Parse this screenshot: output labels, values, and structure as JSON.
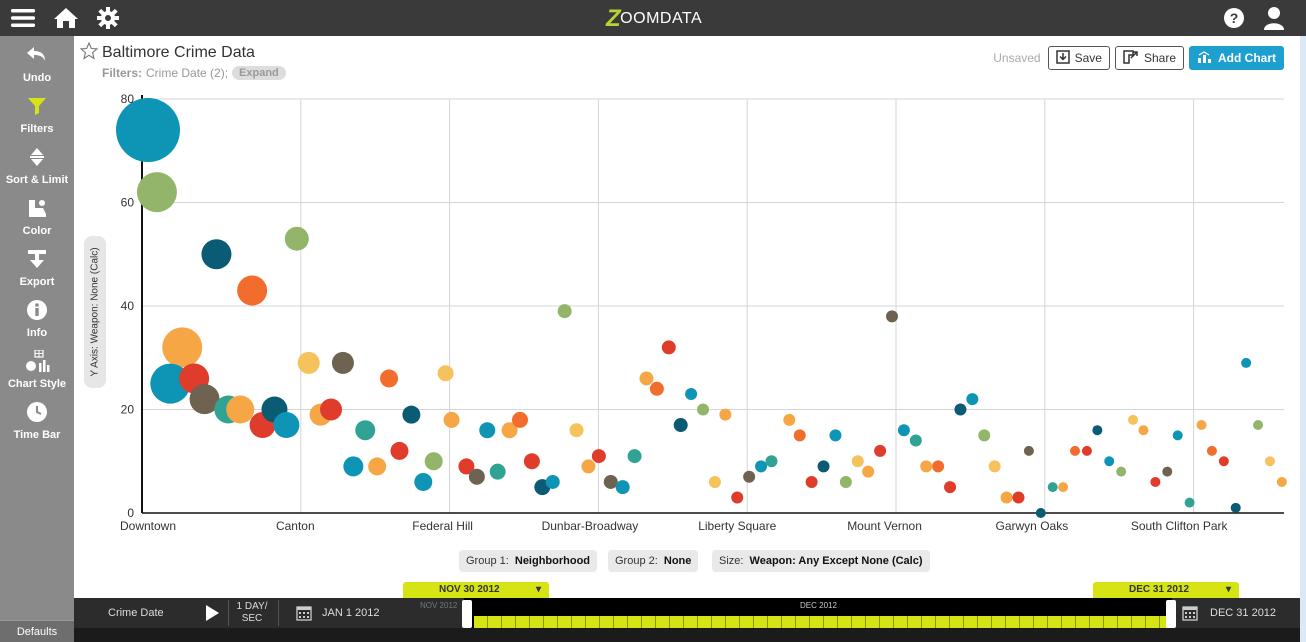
{
  "topbar": {
    "logo_text": "OOMDATA",
    "logo_mark": "Z"
  },
  "sidebar": {
    "items": [
      {
        "label": "Undo",
        "icon": "undo-icon"
      },
      {
        "label": "Filters",
        "icon": "filter-icon"
      },
      {
        "label": "Sort & Limit",
        "icon": "sort-icon"
      },
      {
        "label": "Color",
        "icon": "color-icon"
      },
      {
        "label": "Export",
        "icon": "export-icon"
      },
      {
        "label": "Info",
        "icon": "info-icon"
      },
      {
        "label": "Chart Style",
        "icon": "chart-style-icon"
      },
      {
        "label": "Time Bar",
        "icon": "clock-icon"
      }
    ],
    "defaults_label": "Defaults"
  },
  "header": {
    "title": "Baltimore Crime Data",
    "filters_label": "Filters:",
    "filters_value": "Crime Date (2);",
    "expand_label": "Expand",
    "unsaved_label": "Unsaved",
    "save_label": "Save",
    "share_label": "Share",
    "add_chart_label": "Add Chart"
  },
  "colors": {
    "accent": "#1d9fd0",
    "timebar": "#d6e315",
    "palette": [
      "#0e95b5",
      "#93b56a",
      "#0a5b73",
      "#f26d2d",
      "#f7a646",
      "#e03c2c",
      "#31a394",
      "#f5c25b",
      "#6e6250",
      "#c9d4e0"
    ]
  },
  "yaxis_pill": "Y Axis: Weapon: None (Calc)",
  "group_pills": {
    "group1_label": "Group 1:",
    "group1_value": "Neighborhood",
    "group2_label": "Group 2:",
    "group2_value": "None",
    "size_label": "Size:",
    "size_value": "Weapon: Any Except None (Calc)"
  },
  "timebar": {
    "start_flag": "NOV 30 2012",
    "end_flag": "DEC 31 2012",
    "field": "Crime Date",
    "speed_line1": "1 DAY/",
    "speed_line2": "SEC",
    "start_date": "JAN 1 2012",
    "end_date": "DEC 31 2012",
    "month_left": "NOV 2012",
    "month_right": "DEC 2012"
  },
  "chart_data": {
    "type": "scatter",
    "title": "",
    "xlabel": "",
    "ylabel": "Weapon: None (Calc)",
    "ylim": [
      0,
      80
    ],
    "yticks": [
      0,
      20,
      40,
      60,
      80
    ],
    "x_tick_labels": [
      "Downtown",
      "Canton",
      "Federal Hill",
      "Dunbar-Broadway",
      "Liberty Square",
      "Mount Vernon",
      "Garwyn Oaks",
      "South Clifton Park"
    ],
    "grid": true,
    "points": [
      {
        "x": 0.0,
        "y": 74,
        "r": 32,
        "c": 0
      },
      {
        "x": 0.06,
        "y": 62,
        "r": 20,
        "c": 1
      },
      {
        "x": 0.46,
        "y": 50,
        "r": 15,
        "c": 2
      },
      {
        "x": 0.7,
        "y": 43,
        "r": 15,
        "c": 3
      },
      {
        "x": 1.0,
        "y": 53,
        "r": 12,
        "c": 1
      },
      {
        "x": 0.23,
        "y": 32,
        "r": 20,
        "c": 4
      },
      {
        "x": 0.15,
        "y": 25,
        "r": 20,
        "c": 0
      },
      {
        "x": 0.31,
        "y": 26,
        "r": 15,
        "c": 5
      },
      {
        "x": 0.38,
        "y": 22,
        "r": 15,
        "c": 8
      },
      {
        "x": 0.54,
        "y": 20,
        "r": 14,
        "c": 6
      },
      {
        "x": 0.62,
        "y": 20,
        "r": 14,
        "c": 4
      },
      {
        "x": 0.77,
        "y": 17,
        "r": 13,
        "c": 5
      },
      {
        "x": 0.85,
        "y": 20,
        "r": 13,
        "c": 2
      },
      {
        "x": 0.93,
        "y": 17,
        "r": 13,
        "c": 0
      },
      {
        "x": 1.08,
        "y": 29,
        "r": 11,
        "c": 7
      },
      {
        "x": 1.31,
        "y": 29,
        "r": 11,
        "c": 8
      },
      {
        "x": 1.16,
        "y": 19,
        "r": 11,
        "c": 4
      },
      {
        "x": 1.23,
        "y": 20,
        "r": 11,
        "c": 5
      },
      {
        "x": 1.46,
        "y": 16,
        "r": 10,
        "c": 6
      },
      {
        "x": 1.38,
        "y": 9,
        "r": 10,
        "c": 0
      },
      {
        "x": 1.54,
        "y": 9,
        "r": 9,
        "c": 4
      },
      {
        "x": 1.62,
        "y": 26,
        "r": 9,
        "c": 3
      },
      {
        "x": 1.69,
        "y": 12,
        "r": 9,
        "c": 5
      },
      {
        "x": 1.77,
        "y": 19,
        "r": 9,
        "c": 2
      },
      {
        "x": 1.85,
        "y": 6,
        "r": 9,
        "c": 0
      },
      {
        "x": 1.92,
        "y": 10,
        "r": 9,
        "c": 1
      },
      {
        "x": 2.0,
        "y": 27,
        "r": 8,
        "c": 7
      },
      {
        "x": 2.04,
        "y": 18,
        "r": 8,
        "c": 4
      },
      {
        "x": 2.14,
        "y": 9,
        "r": 8,
        "c": 5
      },
      {
        "x": 2.21,
        "y": 7,
        "r": 8,
        "c": 8
      },
      {
        "x": 2.28,
        "y": 16,
        "r": 8,
        "c": 0
      },
      {
        "x": 2.35,
        "y": 8,
        "r": 8,
        "c": 6
      },
      {
        "x": 2.43,
        "y": 16,
        "r": 8,
        "c": 4
      },
      {
        "x": 2.5,
        "y": 18,
        "r": 8,
        "c": 3
      },
      {
        "x": 2.58,
        "y": 10,
        "r": 8,
        "c": 5
      },
      {
        "x": 2.65,
        "y": 5,
        "r": 8,
        "c": 2
      },
      {
        "x": 2.72,
        "y": 6,
        "r": 7,
        "c": 0
      },
      {
        "x": 2.8,
        "y": 39,
        "r": 7,
        "c": 1
      },
      {
        "x": 2.88,
        "y": 16,
        "r": 7,
        "c": 7
      },
      {
        "x": 2.96,
        "y": 9,
        "r": 7,
        "c": 4
      },
      {
        "x": 3.03,
        "y": 11,
        "r": 7,
        "c": 5
      },
      {
        "x": 3.11,
        "y": 6,
        "r": 7,
        "c": 8
      },
      {
        "x": 3.19,
        "y": 5,
        "r": 7,
        "c": 0
      },
      {
        "x": 3.27,
        "y": 11,
        "r": 7,
        "c": 6
      },
      {
        "x": 3.35,
        "y": 26,
        "r": 7,
        "c": 4
      },
      {
        "x": 3.42,
        "y": 24,
        "r": 7,
        "c": 3
      },
      {
        "x": 3.5,
        "y": 32,
        "r": 7,
        "c": 5
      },
      {
        "x": 3.58,
        "y": 17,
        "r": 7,
        "c": 2
      },
      {
        "x": 3.65,
        "y": 23,
        "r": 6,
        "c": 0
      },
      {
        "x": 3.73,
        "y": 20,
        "r": 6,
        "c": 1
      },
      {
        "x": 3.81,
        "y": 6,
        "r": 6,
        "c": 7
      },
      {
        "x": 3.88,
        "y": 19,
        "r": 6,
        "c": 4
      },
      {
        "x": 3.96,
        "y": 3,
        "r": 6,
        "c": 5
      },
      {
        "x": 4.04,
        "y": 7,
        "r": 6,
        "c": 8
      },
      {
        "x": 4.12,
        "y": 9,
        "r": 6,
        "c": 0
      },
      {
        "x": 4.19,
        "y": 10,
        "r": 6,
        "c": 6
      },
      {
        "x": 4.31,
        "y": 18,
        "r": 6,
        "c": 4
      },
      {
        "x": 4.38,
        "y": 15,
        "r": 6,
        "c": 3
      },
      {
        "x": 4.46,
        "y": 6,
        "r": 6,
        "c": 5
      },
      {
        "x": 4.54,
        "y": 9,
        "r": 6,
        "c": 2
      },
      {
        "x": 4.62,
        "y": 15,
        "r": 6,
        "c": 0
      },
      {
        "x": 4.69,
        "y": 6,
        "r": 6,
        "c": 1
      },
      {
        "x": 4.77,
        "y": 10,
        "r": 6,
        "c": 7
      },
      {
        "x": 4.84,
        "y": 8,
        "r": 6,
        "c": 4
      },
      {
        "x": 4.92,
        "y": 12,
        "r": 6,
        "c": 5
      },
      {
        "x": 5.0,
        "y": 38,
        "r": 6,
        "c": 8
      },
      {
        "x": 5.08,
        "y": 16,
        "r": 6,
        "c": 0
      },
      {
        "x": 5.16,
        "y": 14,
        "r": 6,
        "c": 6
      },
      {
        "x": 5.23,
        "y": 9,
        "r": 6,
        "c": 4
      },
      {
        "x": 5.31,
        "y": 9,
        "r": 6,
        "c": 3
      },
      {
        "x": 5.39,
        "y": 5,
        "r": 6,
        "c": 5
      },
      {
        "x": 5.46,
        "y": 20,
        "r": 6,
        "c": 2
      },
      {
        "x": 5.54,
        "y": 22,
        "r": 6,
        "c": 0
      },
      {
        "x": 5.62,
        "y": 15,
        "r": 6,
        "c": 1
      },
      {
        "x": 5.69,
        "y": 9,
        "r": 6,
        "c": 7
      },
      {
        "x": 5.77,
        "y": 3,
        "r": 6,
        "c": 4
      },
      {
        "x": 5.85,
        "y": 3,
        "r": 6,
        "c": 5
      },
      {
        "x": 5.92,
        "y": 12,
        "r": 5,
        "c": 8
      },
      {
        "x": 6.0,
        "y": 0,
        "r": 5,
        "c": 2
      },
      {
        "x": 6.08,
        "y": 5,
        "r": 5,
        "c": 6
      },
      {
        "x": 6.15,
        "y": 5,
        "r": 5,
        "c": 4
      },
      {
        "x": 6.23,
        "y": 12,
        "r": 5,
        "c": 3
      },
      {
        "x": 6.31,
        "y": 12,
        "r": 5,
        "c": 5
      },
      {
        "x": 6.38,
        "y": 16,
        "r": 5,
        "c": 2
      },
      {
        "x": 6.46,
        "y": 10,
        "r": 5,
        "c": 0
      },
      {
        "x": 6.54,
        "y": 8,
        "r": 5,
        "c": 1
      },
      {
        "x": 6.62,
        "y": 18,
        "r": 5,
        "c": 7
      },
      {
        "x": 6.69,
        "y": 16,
        "r": 5,
        "c": 4
      },
      {
        "x": 6.77,
        "y": 6,
        "r": 5,
        "c": 5
      },
      {
        "x": 6.85,
        "y": 8,
        "r": 5,
        "c": 8
      },
      {
        "x": 6.92,
        "y": 15,
        "r": 5,
        "c": 0
      },
      {
        "x": 7.0,
        "y": 2,
        "r": 5,
        "c": 6
      },
      {
        "x": 7.08,
        "y": 17,
        "r": 5,
        "c": 4
      },
      {
        "x": 7.15,
        "y": 12,
        "r": 5,
        "c": 3
      },
      {
        "x": 7.23,
        "y": 10,
        "r": 5,
        "c": 5
      },
      {
        "x": 7.31,
        "y": 1,
        "r": 5,
        "c": 2
      },
      {
        "x": 7.38,
        "y": 29,
        "r": 5,
        "c": 0
      },
      {
        "x": 7.46,
        "y": 17,
        "r": 5,
        "c": 1
      },
      {
        "x": 7.54,
        "y": 10,
        "r": 5,
        "c": 7
      },
      {
        "x": 7.62,
        "y": 6,
        "r": 5,
        "c": 4
      }
    ]
  }
}
